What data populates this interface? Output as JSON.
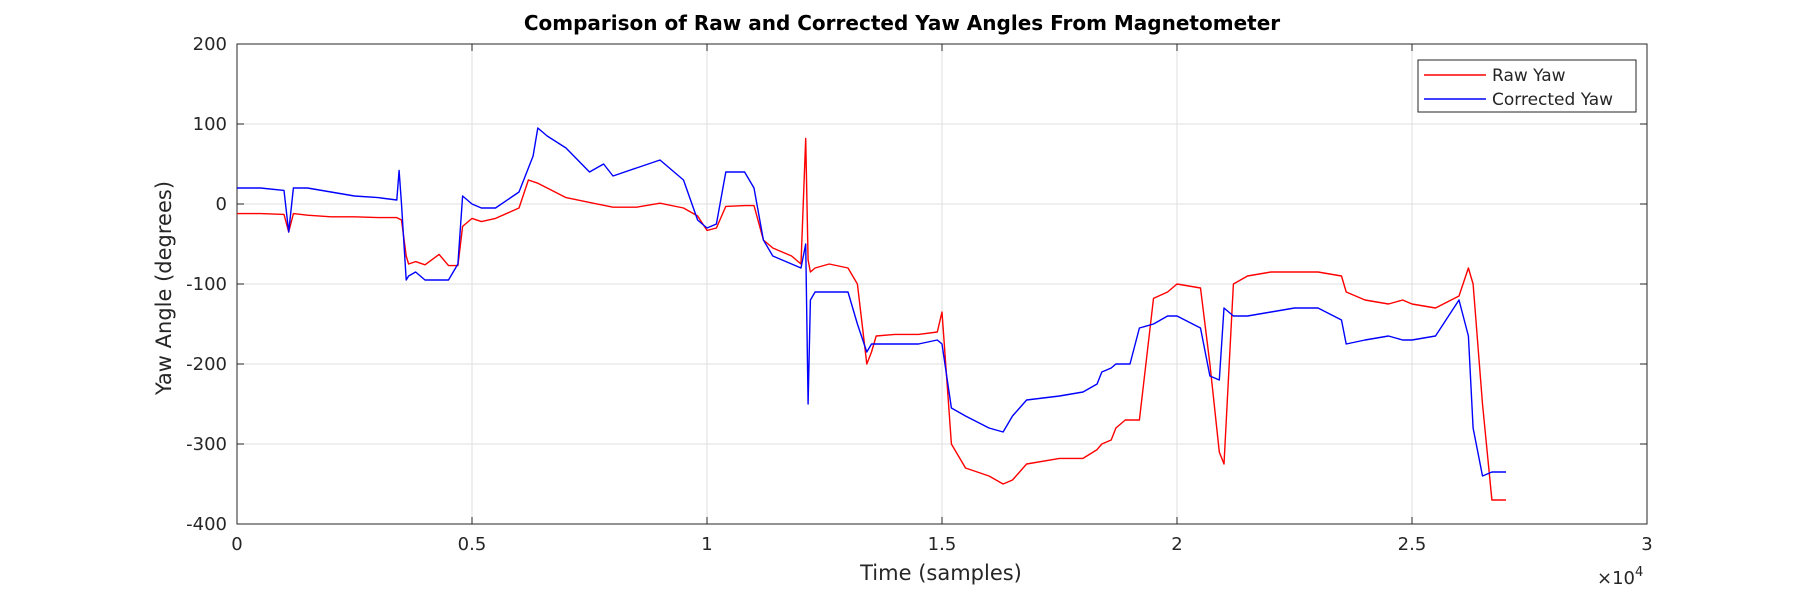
{
  "chart_data": {
    "type": "line",
    "title": "Comparison of Raw and Corrected Yaw Angles From Magnetometer",
    "xlabel": "Time (samples)",
    "ylabel": "Yaw Angle (degrees)",
    "xlim": [
      0,
      30000
    ],
    "ylim": [
      -400,
      200
    ],
    "x_exponent_label": "×10",
    "x_exponent_power": "4",
    "x_ticks": [
      0,
      5000,
      10000,
      15000,
      20000,
      25000,
      30000
    ],
    "x_tick_labels": [
      "0",
      "0.5",
      "1",
      "1.5",
      "2",
      "2.5",
      "3"
    ],
    "y_ticks": [
      200,
      100,
      0,
      -100,
      -200,
      -300,
      -400
    ],
    "y_tick_labels": [
      "200",
      "100",
      "0",
      "-100",
      "-200",
      "-300",
      "-400"
    ],
    "grid": true,
    "legend_position": "top-right",
    "series": [
      {
        "name": "Raw Yaw",
        "color": "#ff0000",
        "x": [
          0,
          500,
          1000,
          1100,
          1200,
          1500,
          2000,
          2500,
          3000,
          3400,
          3500,
          3600,
          3650,
          3800,
          4000,
          4300,
          4500,
          4700,
          4800,
          5000,
          5200,
          5500,
          6000,
          6200,
          6400,
          6600,
          7000,
          7500,
          8000,
          8500,
          9000,
          9500,
          9800,
          10000,
          10200,
          10400,
          10800,
          11000,
          11200,
          11400,
          11800,
          12000,
          12100,
          12150,
          12200,
          12300,
          12600,
          13000,
          13200,
          13400,
          13500,
          13600,
          14000,
          14500,
          14900,
          15000,
          15200,
          15500,
          16000,
          16300,
          16500,
          16800,
          17500,
          18000,
          18300,
          18400,
          18600,
          18700,
          18900,
          19000,
          19200,
          19500,
          19800,
          20000,
          20500,
          20700,
          20900,
          21000,
          21200,
          21500,
          22000,
          22500,
          23000,
          23500,
          23600,
          24000,
          24500,
          24800,
          25000,
          25500,
          26000,
          26200,
          26300,
          26500,
          26700,
          27000
        ],
        "values": [
          -12,
          -12,
          -13,
          -35,
          -12,
          -14,
          -16,
          -16,
          -17,
          -17,
          -20,
          -65,
          -75,
          -72,
          -76,
          -63,
          -77,
          -77,
          -28,
          -18,
          -22,
          -18,
          -5,
          30,
          26,
          20,
          8,
          2,
          -4,
          -4,
          1,
          -5,
          -15,
          -33,
          -30,
          -3,
          -2,
          -2,
          -45,
          -55,
          -65,
          -75,
          82,
          -70,
          -85,
          -80,
          -75,
          -80,
          -100,
          -200,
          -185,
          -165,
          -163,
          -163,
          -160,
          -135,
          -300,
          -330,
          -340,
          -350,
          -345,
          -325,
          -318,
          -318,
          -307,
          -300,
          -295,
          -280,
          -270,
          -270,
          -270,
          -118,
          -110,
          -100,
          -105,
          -200,
          -310,
          -325,
          -100,
          -90,
          -85,
          -85,
          -85,
          -90,
          -110,
          -120,
          -125,
          -120,
          -125,
          -130,
          -115,
          -80,
          -100,
          -250,
          -370,
          -370
        ]
      },
      {
        "name": "Corrected Yaw",
        "color": "#0000ff",
        "x": [
          0,
          500,
          1000,
          1100,
          1200,
          1500,
          2000,
          2500,
          3000,
          3400,
          3450,
          3500,
          3600,
          3650,
          3800,
          4000,
          4300,
          4500,
          4700,
          4800,
          5000,
          5200,
          5500,
          6000,
          6300,
          6400,
          6600,
          7000,
          7500,
          7800,
          8000,
          8500,
          9000,
          9500,
          9800,
          10000,
          10200,
          10400,
          10800,
          11000,
          11200,
          11400,
          11800,
          12000,
          12100,
          12150,
          12200,
          12300,
          12600,
          13000,
          13200,
          13400,
          13500,
          13600,
          14000,
          14500,
          14900,
          15000,
          15200,
          15500,
          16000,
          16300,
          16500,
          16800,
          17500,
          18000,
          18300,
          18400,
          18600,
          18700,
          18900,
          19000,
          19200,
          19500,
          19800,
          20000,
          20500,
          20700,
          20900,
          21000,
          21200,
          21500,
          22000,
          22500,
          23000,
          23500,
          23600,
          24000,
          24500,
          24800,
          25000,
          25500,
          26000,
          26200,
          26300,
          26500,
          26700,
          27000
        ],
        "values": [
          20,
          20,
          17,
          -35,
          20,
          20,
          15,
          10,
          8,
          5,
          42,
          0,
          -95,
          -90,
          -85,
          -95,
          -95,
          -95,
          -75,
          10,
          0,
          -5,
          -5,
          15,
          60,
          95,
          85,
          70,
          40,
          50,
          35,
          45,
          55,
          30,
          -20,
          -30,
          -25,
          40,
          40,
          20,
          -45,
          -65,
          -75,
          -80,
          -50,
          -250,
          -120,
          -110,
          -110,
          -110,
          -150,
          -185,
          -175,
          -175,
          -175,
          -175,
          -170,
          -175,
          -255,
          -265,
          -280,
          -285,
          -265,
          -245,
          -240,
          -235,
          -225,
          -210,
          -205,
          -200,
          -200,
          -200,
          -155,
          -150,
          -140,
          -140,
          -155,
          -215,
          -220,
          -130,
          -140,
          -140,
          -135,
          -130,
          -130,
          -145,
          -175,
          -170,
          -165,
          -170,
          -170,
          -165,
          -120,
          -165,
          -280,
          -340,
          -335,
          -335
        ]
      }
    ]
  }
}
